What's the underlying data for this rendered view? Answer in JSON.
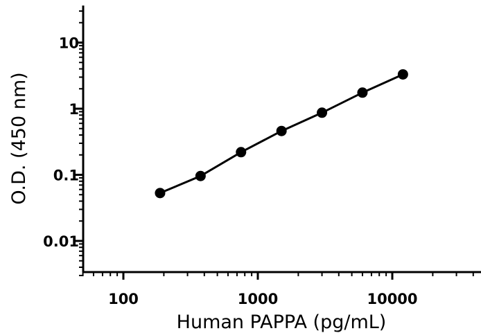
{
  "chart_data": {
    "type": "scatter",
    "title": "",
    "xlabel": "Human PAPPA (pg/mL)",
    "ylabel": "O.D. (450 nm)",
    "x_scale": "log",
    "y_scale": "log",
    "xlim": [
      50,
      50000
    ],
    "ylim": [
      0.003,
      35
    ],
    "x_ticks": [
      {
        "value": 100,
        "label": "100"
      },
      {
        "value": 1000,
        "label": "1000"
      },
      {
        "value": 10000,
        "label": "10000"
      }
    ],
    "y_ticks": [
      {
        "value": 0.01,
        "label": "0.01"
      },
      {
        "value": 0.1,
        "label": "0.1"
      },
      {
        "value": 1,
        "label": "1"
      },
      {
        "value": 10,
        "label": "10"
      }
    ],
    "grid": false,
    "legend": "none",
    "series": [
      {
        "x": [
          187.5,
          375,
          750,
          1500,
          3000,
          6000,
          12000
        ],
        "y": [
          0.053,
          0.096,
          0.22,
          0.46,
          0.87,
          1.75,
          3.3
        ],
        "color": "#000000",
        "fit_line": true
      }
    ]
  }
}
